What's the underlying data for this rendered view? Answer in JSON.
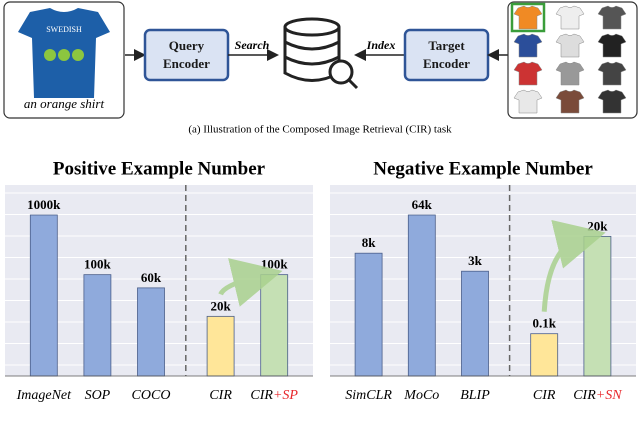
{
  "diagram": {
    "query_encoder": [
      "Query",
      "Encoder"
    ],
    "target_encoder": [
      "Target",
      "Encoder"
    ],
    "search": "Search",
    "index": "Index",
    "query_text": "an orange shirt",
    "caption": "(a) Illustration of the Composed Image Retrieval (CIR) task"
  },
  "chart_data": [
    {
      "type": "bar",
      "title": "Positive Example Number",
      "categories": [
        "ImageNet",
        "SOP",
        "COCO",
        "CIR",
        "CIR+SP"
      ],
      "values": [
        1000,
        100,
        60,
        20,
        100
      ],
      "value_labels": [
        "1000k",
        "100k",
        "60k",
        "20k",
        "100k"
      ],
      "colors": [
        "#8faadc",
        "#8faadc",
        "#8faadc",
        "#ffe699",
        "#c5e0b4"
      ],
      "log_scale": true,
      "divider_index": 3,
      "label_accent": "#e8282d"
    },
    {
      "type": "bar",
      "title": "Negative Example Number",
      "categories": [
        "SimCLR",
        "MoCo",
        "BLIP",
        "CIR",
        "CIR+SN"
      ],
      "values": [
        8,
        64,
        3,
        0.1,
        20
      ],
      "value_labels": [
        "8k",
        "64k",
        "3k",
        "0.1k",
        "20k"
      ],
      "colors": [
        "#8faadc",
        "#8faadc",
        "#8faadc",
        "#ffe699",
        "#c5e0b4"
      ],
      "log_scale": true,
      "divider_index": 3,
      "label_accent": "#e8282d"
    }
  ]
}
